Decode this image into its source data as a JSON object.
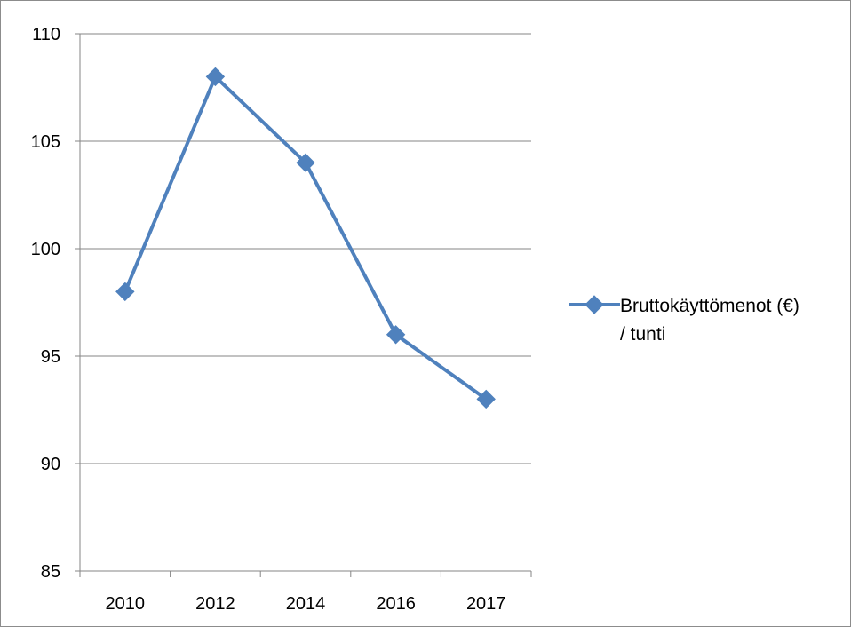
{
  "chart_data": {
    "type": "line",
    "categories": [
      "2010",
      "2012",
      "2014",
      "2016",
      "2017"
    ],
    "series": [
      {
        "name": "Bruttokäyttömenot (€) / tunti",
        "values": [
          98,
          108,
          104,
          96,
          93
        ],
        "color": "#4F81BD",
        "marker": "diamond"
      }
    ],
    "legend_lines": [
      "Bruttokäyttömenot (€)",
      "/ tunti"
    ],
    "title": "",
    "xlabel": "",
    "ylabel": "",
    "ylim": [
      85,
      110
    ],
    "yticks": [
      85,
      90,
      95,
      100,
      105,
      110
    ],
    "grid": "horizontal",
    "legend_position": "right"
  }
}
